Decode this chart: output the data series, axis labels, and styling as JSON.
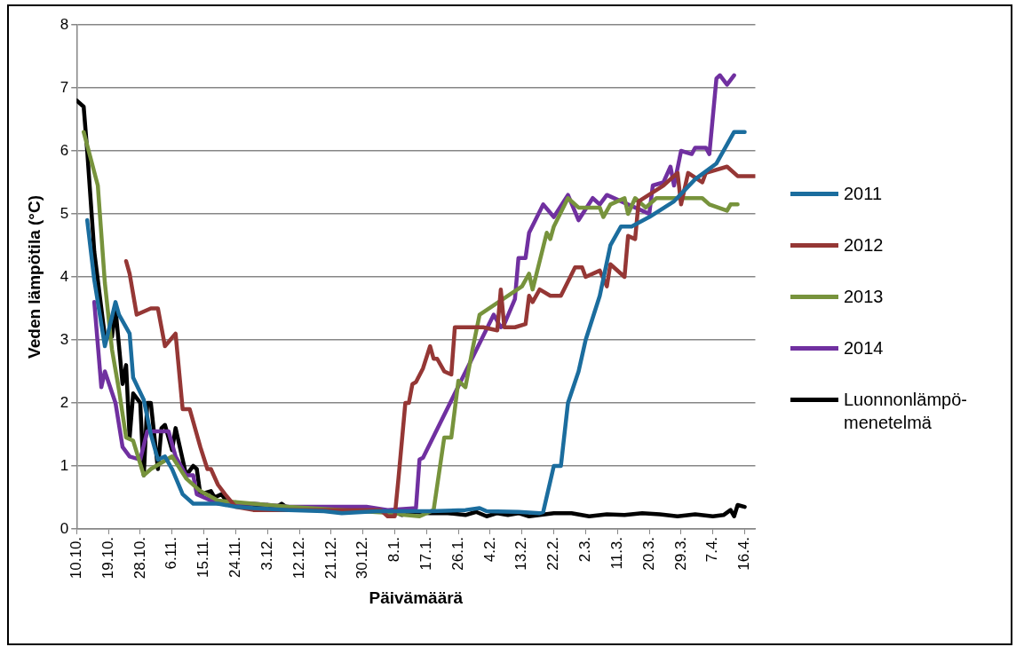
{
  "chart_data": {
    "type": "line",
    "xlabel": "Päivämäärä",
    "ylabel": "Veden lämpötila (°C)",
    "xlim": [
      "2011-10-10",
      "2012-04-19"
    ],
    "xticks": [
      {
        "value": "2011-10-10",
        "label": "10.10."
      },
      {
        "value": "2011-10-19",
        "label": "19.10."
      },
      {
        "value": "2011-10-28",
        "label": "28.10."
      },
      {
        "value": "2011-11-06",
        "label": "6.11."
      },
      {
        "value": "2011-11-15",
        "label": "15.11."
      },
      {
        "value": "2011-11-24",
        "label": "24.11."
      },
      {
        "value": "2011-12-03",
        "label": "3.12."
      },
      {
        "value": "2011-12-12",
        "label": "12.12."
      },
      {
        "value": "2011-12-21",
        "label": "21.12."
      },
      {
        "value": "2011-12-30",
        "label": "30.12."
      },
      {
        "value": "2012-01-08",
        "label": "8.1."
      },
      {
        "value": "2012-01-17",
        "label": "17.1."
      },
      {
        "value": "2012-01-26",
        "label": "26.1."
      },
      {
        "value": "2012-02-04",
        "label": "4.2."
      },
      {
        "value": "2012-02-13",
        "label": "13.2."
      },
      {
        "value": "2012-02-22",
        "label": "22.2."
      },
      {
        "value": "2012-03-02",
        "label": "2.3."
      },
      {
        "value": "2012-03-11",
        "label": "11.3."
      },
      {
        "value": "2012-03-20",
        "label": "20.3."
      },
      {
        "value": "2012-03-29",
        "label": "29.3."
      },
      {
        "value": "2012-04-07",
        "label": "7.4."
      },
      {
        "value": "2012-04-16",
        "label": "16.4."
      }
    ],
    "ylim": [
      0,
      8
    ],
    "yticks": [
      0,
      1,
      2,
      3,
      4,
      5,
      6,
      7,
      8
    ],
    "grid": "y",
    "legend": "right",
    "series": [
      {
        "name": "2011",
        "color": "#1b6d9e",
        "x": [
          "2011-10-13",
          "2011-10-15",
          "2011-10-18",
          "2011-10-21",
          "2011-10-22",
          "2011-10-25",
          "2011-10-26",
          "2011-10-29",
          "2011-10-31",
          "2011-11-02",
          "2011-11-04",
          "2011-11-06",
          "2011-11-09",
          "2011-11-12",
          "2011-11-19",
          "2011-11-24",
          "2011-11-29",
          "2011-12-09",
          "2011-12-19",
          "2011-12-24",
          "2012-01-03",
          "2012-01-18",
          "2012-01-28",
          "2012-02-01",
          "2012-02-03",
          "2012-02-12",
          "2012-02-18",
          "2012-02-19",
          "2012-02-22",
          "2012-02-24",
          "2012-02-26",
          "2012-02-29",
          "2012-03-02",
          "2012-03-06",
          "2012-03-09",
          "2012-03-12",
          "2012-03-15",
          "2012-03-20",
          "2012-03-27",
          "2012-04-02",
          "2012-04-08",
          "2012-04-13",
          "2012-04-16"
        ],
        "values": [
          4.9,
          3.95,
          2.9,
          3.6,
          3.4,
          3.1,
          2.4,
          2.05,
          1.5,
          1.1,
          1.15,
          0.95,
          0.55,
          0.4,
          0.4,
          0.35,
          0.33,
          0.3,
          0.28,
          0.25,
          0.28,
          0.28,
          0.3,
          0.33,
          0.28,
          0.27,
          0.25,
          0.27,
          1.0,
          1.0,
          2.0,
          2.5,
          3.0,
          3.7,
          4.5,
          4.8,
          4.8,
          4.95,
          5.2,
          5.55,
          5.8,
          6.3,
          6.3
        ]
      },
      {
        "name": "2012",
        "color": "#953735",
        "x": [
          "2011-10-24",
          "2011-10-25",
          "2011-10-27",
          "2011-10-31",
          "2011-11-02",
          "2011-11-04",
          "2011-11-07",
          "2011-11-09",
          "2011-11-11",
          "2011-11-14",
          "2011-11-16",
          "2011-11-17",
          "2011-11-19",
          "2011-11-21",
          "2011-11-24",
          "2011-11-29",
          "2011-12-09",
          "2011-12-19",
          "2011-12-29",
          "2012-01-04",
          "2012-01-06",
          "2012-01-08",
          "2012-01-09",
          "2012-01-11",
          "2012-01-12",
          "2012-01-13",
          "2012-01-14",
          "2012-01-16",
          "2012-01-18",
          "2012-01-19",
          "2012-01-20",
          "2012-01-22",
          "2012-01-24",
          "2012-01-25",
          "2012-01-30",
          "2012-02-02",
          "2012-02-06",
          "2012-02-07",
          "2012-02-08",
          "2012-02-11",
          "2012-02-14",
          "2012-02-15",
          "2012-02-16",
          "2012-02-18",
          "2012-02-21",
          "2012-02-24",
          "2012-02-28",
          "2012-03-01",
          "2012-03-02",
          "2012-03-06",
          "2012-03-08",
          "2012-03-09",
          "2012-03-13",
          "2012-03-14",
          "2012-03-16",
          "2012-03-17",
          "2012-03-24",
          "2012-03-28",
          "2012-03-29",
          "2012-03-31",
          "2012-04-04",
          "2012-04-05",
          "2012-04-11",
          "2012-04-14",
          "2012-04-19"
        ],
        "values": [
          4.25,
          4.05,
          3.4,
          3.5,
          3.5,
          2.9,
          3.1,
          1.9,
          1.9,
          1.3,
          0.95,
          0.95,
          0.7,
          0.55,
          0.35,
          0.3,
          0.3,
          0.3,
          0.3,
          0.3,
          0.2,
          0.2,
          0.77,
          2.0,
          2.0,
          2.3,
          2.33,
          2.55,
          2.9,
          2.7,
          2.7,
          2.5,
          2.45,
          3.2,
          3.2,
          3.2,
          3.15,
          3.8,
          3.2,
          3.2,
          3.25,
          3.7,
          3.6,
          3.8,
          3.7,
          3.7,
          4.15,
          4.15,
          4.0,
          4.1,
          3.85,
          4.2,
          4.0,
          4.65,
          4.6,
          5.2,
          5.45,
          5.65,
          5.15,
          5.65,
          5.5,
          5.65,
          5.75,
          5.6,
          5.6
        ]
      },
      {
        "name": "2013",
        "color": "#77933c",
        "x": [
          "2011-10-12",
          "2011-10-16",
          "2011-10-18",
          "2011-10-20",
          "2011-10-22",
          "2011-10-24",
          "2011-10-26",
          "2011-10-29",
          "2011-10-31",
          "2011-11-06",
          "2011-11-10",
          "2011-11-14",
          "2011-11-19",
          "2011-11-29",
          "2011-12-09",
          "2011-12-24",
          "2012-01-08",
          "2012-01-11",
          "2012-01-15",
          "2012-01-19",
          "2012-01-22",
          "2012-01-24",
          "2012-01-25",
          "2012-01-26",
          "2012-01-28",
          "2012-01-30",
          "2012-02-01",
          "2012-02-13",
          "2012-02-15",
          "2012-02-16",
          "2012-02-20",
          "2012-02-21",
          "2012-02-22",
          "2012-02-26",
          "2012-02-29",
          "2012-03-06",
          "2012-03-07",
          "2012-03-09",
          "2012-03-13",
          "2012-03-14",
          "2012-03-16",
          "2012-03-19",
          "2012-03-22",
          "2012-04-04",
          "2012-04-06",
          "2012-04-11",
          "2012-04-12",
          "2012-04-14"
        ],
        "values": [
          6.3,
          5.45,
          3.9,
          2.85,
          2.2,
          1.45,
          1.4,
          0.85,
          0.95,
          1.15,
          0.8,
          0.6,
          0.45,
          0.4,
          0.35,
          0.3,
          0.25,
          0.22,
          0.2,
          0.3,
          1.45,
          1.45,
          1.9,
          2.35,
          2.25,
          2.85,
          3.4,
          3.85,
          4.05,
          3.8,
          4.7,
          4.6,
          4.8,
          5.25,
          5.1,
          5.1,
          4.95,
          5.15,
          5.25,
          5.0,
          5.25,
          5.1,
          5.25,
          5.25,
          5.15,
          5.05,
          5.15,
          5.15
        ]
      },
      {
        "name": "2014",
        "color": "#7030a0",
        "x": [
          "2011-10-15",
          "2011-10-17",
          "2011-10-18",
          "2011-10-21",
          "2011-10-23",
          "2011-10-25",
          "2011-10-28",
          "2011-10-30",
          "2011-11-02",
          "2011-11-05",
          "2011-11-07",
          "2011-11-10",
          "2011-11-12",
          "2011-11-13",
          "2011-11-19",
          "2011-11-29",
          "2011-12-09",
          "2011-12-20",
          "2011-12-31",
          "2012-01-06",
          "2012-01-14",
          "2012-01-15",
          "2012-01-16",
          "2012-02-05",
          "2012-02-07",
          "2012-02-08",
          "2012-02-11",
          "2012-02-12",
          "2012-02-14",
          "2012-02-15",
          "2012-02-19",
          "2012-02-22",
          "2012-02-26",
          "2012-02-29",
          "2012-03-04",
          "2012-03-06",
          "2012-03-08",
          "2012-03-14",
          "2012-03-18",
          "2012-03-20",
          "2012-03-21",
          "2012-03-24",
          "2012-03-26",
          "2012-03-27",
          "2012-03-29",
          "2012-04-01",
          "2012-04-02",
          "2012-04-05",
          "2012-04-06",
          "2012-04-08",
          "2012-04-09",
          "2012-04-11",
          "2012-04-13"
        ],
        "values": [
          3.6,
          2.25,
          2.5,
          2.0,
          1.3,
          1.15,
          1.1,
          1.55,
          1.55,
          1.55,
          1.15,
          0.85,
          0.85,
          0.55,
          0.4,
          0.4,
          0.35,
          0.35,
          0.35,
          0.3,
          0.33,
          1.1,
          1.13,
          3.4,
          3.2,
          3.25,
          3.65,
          4.3,
          4.3,
          4.7,
          5.15,
          4.95,
          5.3,
          4.9,
          5.25,
          5.15,
          5.3,
          5.15,
          5.05,
          5.0,
          5.45,
          5.5,
          5.75,
          5.45,
          6.0,
          5.95,
          6.05,
          6.05,
          5.95,
          7.15,
          7.2,
          7.05,
          7.2
        ]
      },
      {
        "name": "Luonnonlämpö-menetelmä",
        "color": "#000000",
        "x": [
          "2011-10-10",
          "2011-10-12",
          "2011-10-13",
          "2011-10-15",
          "2011-10-18",
          "2011-10-20",
          "2011-10-21",
          "2011-10-23",
          "2011-10-24",
          "2011-10-25",
          "2011-10-26",
          "2011-10-28",
          "2011-10-29",
          "2011-10-30",
          "2011-10-31",
          "2011-11-02",
          "2011-11-03",
          "2011-11-04",
          "2011-11-06",
          "2011-11-07",
          "2011-11-10",
          "2011-11-12",
          "2011-11-13",
          "2011-11-14",
          "2011-11-17",
          "2011-11-18",
          "2011-11-20",
          "2011-11-22",
          "2011-11-24",
          "2011-11-26",
          "2011-11-28",
          "2011-12-01",
          "2011-12-03",
          "2011-12-05",
          "2011-12-07",
          "2011-12-09",
          "2011-12-14",
          "2011-12-19",
          "2011-12-24",
          "2011-12-29",
          "2012-01-03",
          "2012-01-08",
          "2012-01-10",
          "2012-01-13",
          "2012-01-18",
          "2012-01-23",
          "2012-01-28",
          "2012-01-31",
          "2012-02-03",
          "2012-02-06",
          "2012-02-09",
          "2012-02-12",
          "2012-02-15",
          "2012-02-18",
          "2012-02-22",
          "2012-02-27",
          "2012-03-03",
          "2012-03-08",
          "2012-03-13",
          "2012-03-18",
          "2012-03-23",
          "2012-03-28",
          "2012-04-02",
          "2012-04-07",
          "2012-04-10",
          "2012-04-12",
          "2012-04-13",
          "2012-04-14",
          "2012-04-16"
        ],
        "values": [
          6.8,
          6.7,
          6.0,
          4.4,
          3.05,
          3.05,
          3.5,
          2.3,
          2.6,
          1.45,
          2.15,
          2.0,
          0.85,
          2.0,
          2.0,
          0.95,
          1.6,
          1.65,
          1.25,
          1.6,
          0.85,
          1.0,
          0.95,
          0.55,
          0.6,
          0.5,
          0.55,
          0.4,
          0.42,
          0.38,
          0.4,
          0.35,
          0.38,
          0.33,
          0.4,
          0.32,
          0.3,
          0.3,
          0.3,
          0.3,
          0.28,
          0.27,
          0.22,
          0.27,
          0.25,
          0.25,
          0.22,
          0.27,
          0.2,
          0.25,
          0.22,
          0.25,
          0.2,
          0.22,
          0.25,
          0.25,
          0.2,
          0.23,
          0.22,
          0.25,
          0.23,
          0.2,
          0.23,
          0.2,
          0.22,
          0.3,
          0.2,
          0.38,
          0.35
        ]
      }
    ]
  }
}
